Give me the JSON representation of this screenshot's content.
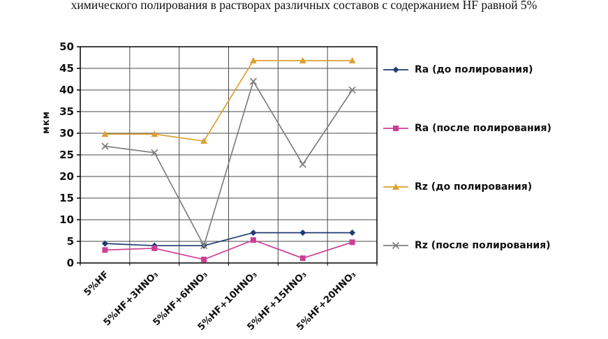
{
  "title": "химического полирования в растворах различных составов с содержанием HF равной 5%",
  "chart_data": {
    "type": "line",
    "categories": [
      "5%HF",
      "5%HF+3HNO₃",
      "5%HF+6HNO₃",
      "5%HF+10HNO₃",
      "5%HF+15HNO₃",
      "5%HF+20HNO₃"
    ],
    "ylabel": "мкм",
    "xlabel": "",
    "ylim": [
      0,
      50
    ],
    "ytick_step": 5,
    "grid": true,
    "legend_position": "right",
    "colors": {
      "ra_before": "#1f3b73",
      "ra_after": "#cc3e96",
      "rz_before": "#dca033",
      "rz_after": "#7f7f7f",
      "gridline": "#4a4a4a",
      "axis": "#000000"
    },
    "series": [
      {
        "name": "Ra (до полирования)",
        "color": "#1f3b73",
        "marker": "diamond",
        "values": [
          4.5,
          4,
          4,
          7,
          7,
          7
        ]
      },
      {
        "name": "Ra (после полирования)",
        "color": "#cc3e96",
        "marker": "square",
        "values": [
          3,
          3.4,
          0.8,
          5.3,
          1.1,
          4.8
        ]
      },
      {
        "name": "Rz (до полирования)",
        "color": "#dca033",
        "marker": "triangle",
        "values": [
          29.8,
          29.8,
          28.2,
          46.8,
          46.8,
          46.8
        ]
      },
      {
        "name": "Rz (после полирования)",
        "color": "#7f7f7f",
        "marker": "x",
        "values": [
          27,
          25.5,
          4,
          42,
          22.8,
          40
        ]
      }
    ]
  }
}
